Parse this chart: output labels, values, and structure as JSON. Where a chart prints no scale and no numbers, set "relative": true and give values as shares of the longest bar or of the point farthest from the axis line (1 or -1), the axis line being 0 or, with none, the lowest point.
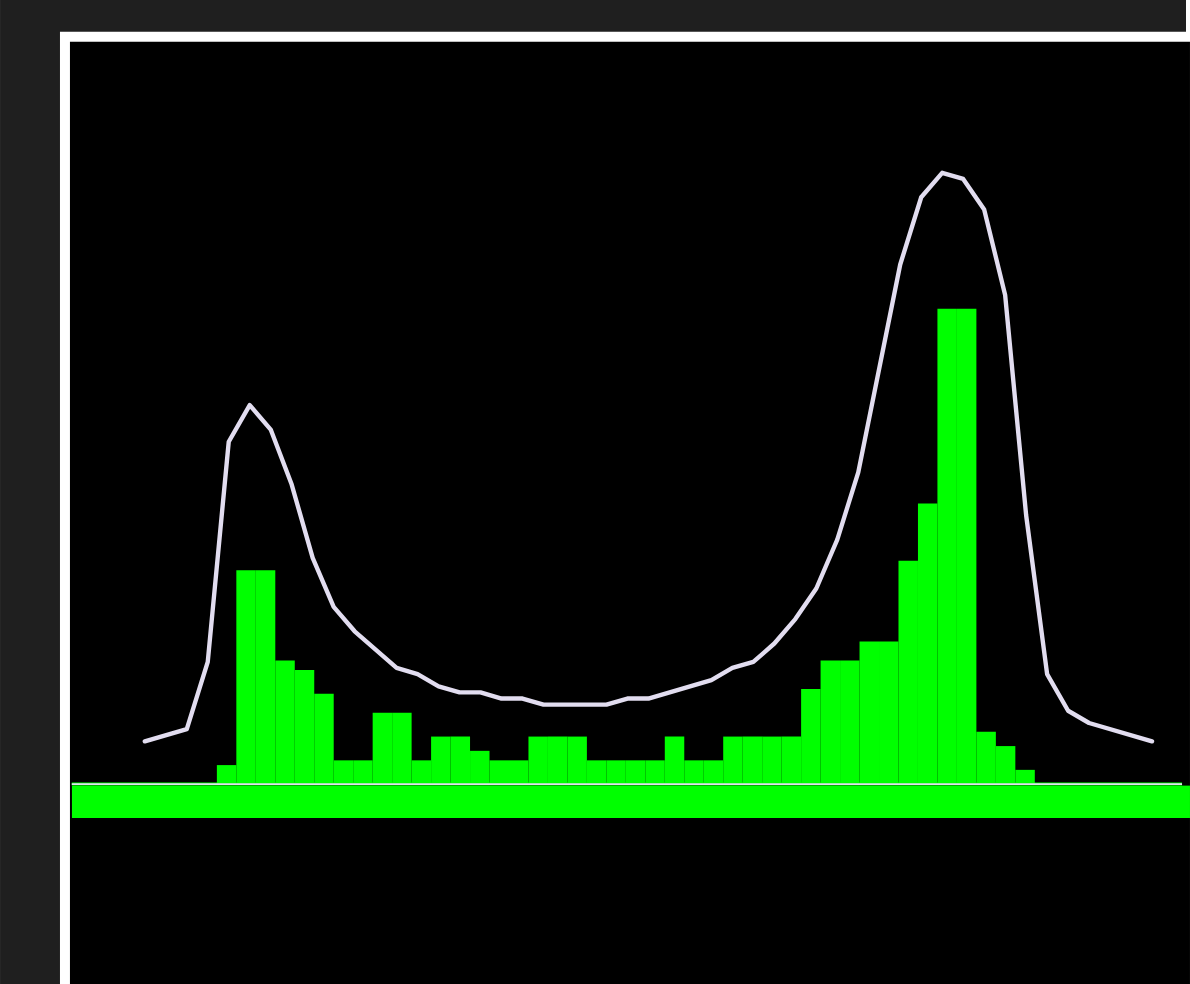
{
  "chart_data": [
    {
      "type": "bar",
      "relative": true,
      "color": "#00ff00",
      "categories": [
        null,
        null,
        null,
        null,
        null,
        null,
        null,
        null,
        null,
        null,
        null,
        null,
        null,
        null,
        null,
        null,
        null,
        null,
        null,
        null,
        null,
        null,
        null,
        null,
        null,
        null,
        null,
        null,
        null,
        null,
        null,
        null,
        null,
        null,
        null,
        null,
        null,
        null,
        null,
        null,
        null,
        null
      ],
      "values": [
        0.04,
        0.45,
        0.45,
        0.26,
        0.24,
        0.19,
        0.05,
        0.05,
        0.15,
        0.15,
        0.05,
        0.1,
        0.1,
        0.07,
        0.05,
        0.05,
        0.1,
        0.1,
        0.1,
        0.05,
        0.05,
        0.05,
        0.05,
        0.1,
        0.05,
        0.05,
        0.1,
        0.1,
        0.1,
        0.1,
        0.2,
        0.26,
        0.26,
        0.3,
        0.3,
        0.47,
        0.59,
        1,
        1,
        0.11,
        0.08,
        0.03
      ]
    },
    {
      "type": "line",
      "relative": true,
      "color": "#e2ddf0",
      "categories": [
        null,
        null,
        null,
        null,
        null,
        null,
        null,
        null,
        null,
        null,
        null,
        null,
        null,
        null,
        null,
        null,
        null,
        null,
        null,
        null,
        null,
        null,
        null,
        null,
        null,
        null,
        null,
        null,
        null,
        null,
        null,
        null,
        null,
        null,
        null,
        null,
        null,
        null,
        null,
        null,
        null,
        null,
        null,
        null,
        null,
        null,
        null,
        null,
        null
      ],
      "values": [
        0.07,
        0.08,
        0.09,
        0.2,
        0.56,
        0.62,
        0.58,
        0.49,
        0.37,
        0.29,
        0.25,
        0.22,
        0.19,
        0.18,
        0.16,
        0.15,
        0.15,
        0.14,
        0.14,
        0.13,
        0.13,
        0.13,
        0.13,
        0.14,
        0.14,
        0.15,
        0.16,
        0.17,
        0.19,
        0.2,
        0.23,
        0.27,
        0.32,
        0.4,
        0.51,
        0.68,
        0.85,
        0.96,
        1,
        0.99,
        0.94,
        0.8,
        0.44,
        0.18,
        0.12,
        0.1,
        0.09,
        0.08,
        0.07
      ]
    }
  ]
}
